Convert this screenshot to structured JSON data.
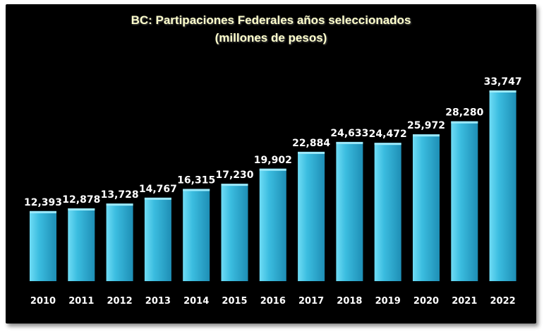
{
  "chart_data": {
    "type": "bar",
    "title": "BC: Partipaciones Federales años seleccionados",
    "subtitle": "(millones de pesos)",
    "categories": [
      "2010",
      "2011",
      "2012",
      "2013",
      "2014",
      "2015",
      "2016",
      "2017",
      "2018",
      "2019",
      "2020",
      "2021",
      "2022"
    ],
    "values": [
      12393,
      12878,
      13728,
      14767,
      16315,
      17230,
      19902,
      22884,
      24633,
      24472,
      25972,
      28280,
      33747
    ],
    "value_labels": [
      "12,393",
      "12,878",
      "13,728",
      "14,767",
      "16,315",
      "17,230",
      "19,902",
      "22,884",
      "24,633",
      "24,472",
      "25,972",
      "28,280",
      "33,747"
    ],
    "xlabel": "",
    "ylabel": "",
    "grid": false,
    "legend": "none",
    "colors": {
      "background": "#000000",
      "bar_light": "#6fdcf5",
      "bar_mid": "#3bbde0",
      "bar_dark": "#1e8eb5",
      "bar_top": "#9ce9fa",
      "label": "#ffffff",
      "title": "#ffffcc"
    }
  }
}
